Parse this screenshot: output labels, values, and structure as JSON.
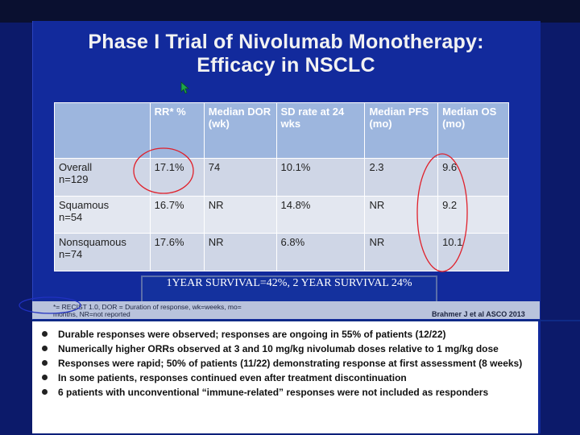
{
  "slide": {
    "title_line1": "Phase I Trial of Nivolumab Monotherapy:",
    "title_line2": "Efficacy in NSCLC"
  },
  "table": {
    "headers": [
      "",
      "RR* %",
      "Median DOR (wk)",
      "SD rate at 24 wks",
      "Median PFS (mo)",
      "Median OS (mo)"
    ],
    "rows": [
      {
        "label_line1": "Overall",
        "label_line2": "n=129",
        "rr": "17.1%",
        "dor": "74",
        "sd": "10.1%",
        "pfs": "2.3",
        "os": "9.6"
      },
      {
        "label_line1": "Squamous",
        "label_line2": "n=54",
        "rr": "16.7%",
        "dor": "NR",
        "sd": "14.8%",
        "pfs": "NR",
        "os": "9.2"
      },
      {
        "label_line1": "Nonsquamous",
        "label_line2": "n=74",
        "rr": "17.6%",
        "dor": "NR",
        "sd": "6.8%",
        "pfs": "NR",
        "os": "10.1"
      }
    ]
  },
  "survival_note": "1YEAR SURVIVAL=42%, 2 YEAR SURVIVAL 24%",
  "footnote_line1": "*= RECIST 1.0, DOR = Duration of response, wk=weeks, mo=",
  "footnote_line2": "months, NR=not reported",
  "citation": "Brahmer J et al  ASCO 2013",
  "bullets": [
    "Durable responses were observed; responses are ongoing in 55% of patients (12/22)",
    "Numerically higher ORRs observed at 3 and 10 mg/kg nivolumab doses relative to 1 mg/kg dose",
    "Responses were rapid; 50% of patients (11/22) demonstrating response at first assessment (8 weeks)",
    "In some patients, responses continued even after treatment discontinuation",
    "6 patients with unconventional “immune-related” responses were not included as responders"
  ],
  "colors": {
    "slide_blue": "#122a9c",
    "table_header": "#9db6de",
    "annotation_red": "#e0202a"
  }
}
